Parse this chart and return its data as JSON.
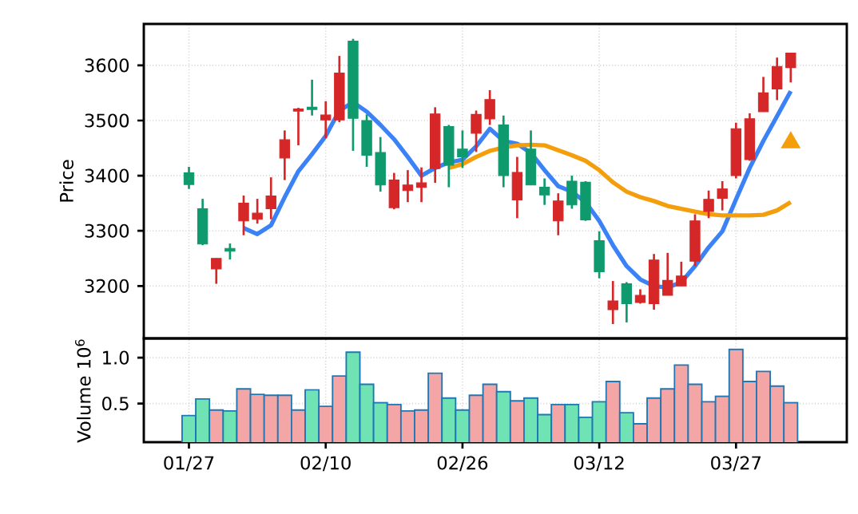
{
  "chart_data": [
    {
      "type": "candlestick",
      "ylabel": "Price",
      "ylim": [
        3105,
        3675
      ],
      "yticks": [
        3200,
        3300,
        3400,
        3500,
        3600
      ],
      "grid": true,
      "tick_labels": "y",
      "categories": [
        null,
        null,
        null,
        null,
        null,
        null,
        null,
        null,
        null,
        null,
        null,
        null,
        null,
        null,
        null,
        null,
        null,
        null,
        null,
        null,
        null,
        null,
        null,
        null,
        null,
        null,
        null,
        null,
        null,
        null,
        null,
        null,
        null,
        null,
        null,
        null,
        null,
        null,
        null,
        null,
        null,
        null,
        null,
        null,
        null
      ],
      "ohlc": [
        [
          3405,
          3416,
          3376,
          3384
        ],
        [
          3340,
          3358,
          3274,
          3276
        ],
        [
          3231,
          3250,
          3204,
          3250
        ],
        [
          3268,
          3277,
          3248,
          3263
        ],
        [
          3318,
          3364,
          3292,
          3350
        ],
        [
          3321,
          3358,
          3313,
          3332
        ],
        [
          3340,
          3397,
          3321,
          3363
        ],
        [
          3432,
          3482,
          3392,
          3465
        ],
        [
          3517,
          3523,
          3455,
          3521
        ],
        [
          3524,
          3574,
          3509,
          3520
        ],
        [
          3501,
          3535,
          3468,
          3510
        ],
        [
          3501,
          3617,
          3497,
          3586
        ],
        [
          3644,
          3648,
          3445,
          3504
        ],
        [
          3500,
          3511,
          3416,
          3437
        ],
        [
          3442,
          3470,
          3371,
          3383
        ],
        [
          3342,
          3405,
          3339,
          3392
        ],
        [
          3373,
          3410,
          3352,
          3383
        ],
        [
          3379,
          3415,
          3352,
          3387
        ],
        [
          3413,
          3524,
          3387,
          3512
        ],
        [
          3489,
          3492,
          3379,
          3419
        ],
        [
          3448,
          3482,
          3414,
          3434
        ],
        [
          3477,
          3518,
          3443,
          3511
        ],
        [
          3503,
          3555,
          3492,
          3538
        ],
        [
          3492,
          3509,
          3379,
          3400
        ],
        [
          3356,
          3434,
          3323,
          3406
        ],
        [
          3448,
          3482,
          3383,
          3383
        ],
        [
          3379,
          3395,
          3347,
          3365
        ],
        [
          3318,
          3368,
          3292,
          3354
        ],
        [
          3390,
          3400,
          3340,
          3347
        ],
        [
          3388,
          3390,
          3318,
          3320
        ],
        [
          3282,
          3299,
          3214,
          3226
        ],
        [
          3157,
          3209,
          3131,
          3173
        ],
        [
          3204,
          3207,
          3134,
          3168
        ],
        [
          3170,
          3194,
          3168,
          3183
        ],
        [
          3168,
          3258,
          3157,
          3247
        ],
        [
          3183,
          3260,
          3183,
          3210
        ],
        [
          3200,
          3244,
          3200,
          3218
        ],
        [
          3245,
          3330,
          3236,
          3318
        ],
        [
          3335,
          3373,
          3323,
          3357
        ],
        [
          3359,
          3390,
          3337,
          3376
        ],
        [
          3400,
          3496,
          3395,
          3485
        ],
        [
          3429,
          3513,
          3427,
          3503
        ],
        [
          3516,
          3579,
          3516,
          3550
        ],
        [
          3557,
          3614,
          3537,
          3598
        ],
        [
          3596,
          3622,
          3569,
          3622
        ]
      ],
      "colors": [
        "#0f9a6e",
        "#0f9a6e",
        "#d62728",
        "#0f9a6e",
        "#d62728",
        "#d62728",
        "#d62728",
        "#d62728",
        "#d62728",
        "#0f9a6e",
        "#d62728",
        "#d62728",
        "#0f9a6e",
        "#0f9a6e",
        "#0f9a6e",
        "#d62728",
        "#d62728",
        "#d62728",
        "#d62728",
        "#0f9a6e",
        "#0f9a6e",
        "#d62728",
        "#d62728",
        "#0f9a6e",
        "#d62728",
        "#0f9a6e",
        "#0f9a6e",
        "#d62728",
        "#0f9a6e",
        "#0f9a6e",
        "#0f9a6e",
        "#d62728",
        "#0f9a6e",
        "#d62728",
        "#d62728",
        "#d62728",
        "#d62728",
        "#d62728",
        "#d62728",
        "#d62728",
        "#d62728",
        "#d62728",
        "#d62728",
        "#d62728",
        "#d62728"
      ],
      "series": [
        {
          "type": "line",
          "color": "#3b82f6",
          "values": [
            null,
            null,
            null,
            null,
            3305,
            3294,
            3310,
            3361,
            3408,
            3439,
            3472,
            3518,
            3533,
            3516,
            3492,
            3466,
            3434,
            3400,
            3414,
            3424,
            3429,
            3453,
            3485,
            3463,
            3458,
            3441,
            3410,
            3381,
            3371,
            3352,
            3318,
            3274,
            3236,
            3212,
            3200,
            3197,
            3207,
            3236,
            3270,
            3299,
            3357,
            3414,
            3463,
            3508,
            3553
          ]
        },
        {
          "type": "line",
          "color": "#f59e0b",
          "values": [
            null,
            null,
            null,
            null,
            null,
            null,
            null,
            null,
            null,
            null,
            null,
            null,
            null,
            null,
            null,
            null,
            null,
            null,
            null,
            3414,
            3421,
            3434,
            3445,
            3451,
            3455,
            3456,
            3455,
            3446,
            3437,
            3427,
            3410,
            3388,
            3371,
            3361,
            3354,
            3345,
            3340,
            3335,
            3330,
            3328,
            3328,
            3328,
            3329,
            3337,
            3352
          ]
        },
        {
          "type": "scatter",
          "marker": "triangle",
          "color": "#f59e0b",
          "values": [
            null,
            null,
            null,
            null,
            null,
            null,
            null,
            null,
            null,
            null,
            null,
            null,
            null,
            null,
            null,
            null,
            null,
            null,
            null,
            null,
            null,
            null,
            null,
            null,
            null,
            null,
            null,
            null,
            null,
            null,
            null,
            null,
            null,
            null,
            null,
            null,
            null,
            null,
            null,
            null,
            null,
            null,
            null,
            null,
            3460
          ]
        }
      ]
    },
    {
      "type": "bar",
      "ylabel": "Volume  10$^{6}$",
      "ylim": [
        0.08,
        1.21
      ],
      "yticks": [
        0.5,
        {
          "value": 1,
          "label": "1.0"
        }
      ],
      "grid": true,
      "categories": [
        "01/27",
        null,
        null,
        null,
        null,
        null,
        null,
        null,
        null,
        null,
        "02/10",
        null,
        null,
        null,
        null,
        null,
        null,
        null,
        null,
        null,
        "02/26",
        null,
        null,
        null,
        null,
        null,
        null,
        null,
        null,
        null,
        "03/12",
        null,
        null,
        null,
        null,
        null,
        null,
        null,
        null,
        null,
        "03/27",
        null,
        null,
        null,
        null
      ],
      "values": [
        0.37,
        0.55,
        0.43,
        0.42,
        0.66,
        0.6,
        0.59,
        0.59,
        0.43,
        0.65,
        0.47,
        0.8,
        1.06,
        0.71,
        0.51,
        0.49,
        0.42,
        0.43,
        0.83,
        0.56,
        0.43,
        0.59,
        0.71,
        0.63,
        0.53,
        0.56,
        0.38,
        0.49,
        0.49,
        0.35,
        0.52,
        0.74,
        0.4,
        0.28,
        0.56,
        0.66,
        0.92,
        0.71,
        0.52,
        0.58,
        1.09,
        0.74,
        0.85,
        0.69,
        0.51
      ],
      "colors": [
        "#6fe3b4",
        "#6fe3b4",
        "#f4a6a6",
        "#6fe3b4",
        "#f4a6a6",
        "#f4a6a6",
        "#f4a6a6",
        "#f4a6a6",
        "#f4a6a6",
        "#6fe3b4",
        "#f4a6a6",
        "#f4a6a6",
        "#6fe3b4",
        "#6fe3b4",
        "#6fe3b4",
        "#f4a6a6",
        "#f4a6a6",
        "#f4a6a6",
        "#f4a6a6",
        "#6fe3b4",
        "#6fe3b4",
        "#f4a6a6",
        "#f4a6a6",
        "#6fe3b4",
        "#f4a6a6",
        "#6fe3b4",
        "#6fe3b4",
        "#f4a6a6",
        "#6fe3b4",
        "#6fe3b4",
        "#6fe3b4",
        "#f4a6a6",
        "#6fe3b4",
        "#f4a6a6",
        "#f4a6a6",
        "#f4a6a6",
        "#f4a6a6",
        "#f4a6a6",
        "#f4a6a6",
        "#f4a6a6",
        "#f4a6a6",
        "#f4a6a6",
        "#f4a6a6",
        "#f4a6a6",
        "#f4a6a6"
      ]
    }
  ]
}
